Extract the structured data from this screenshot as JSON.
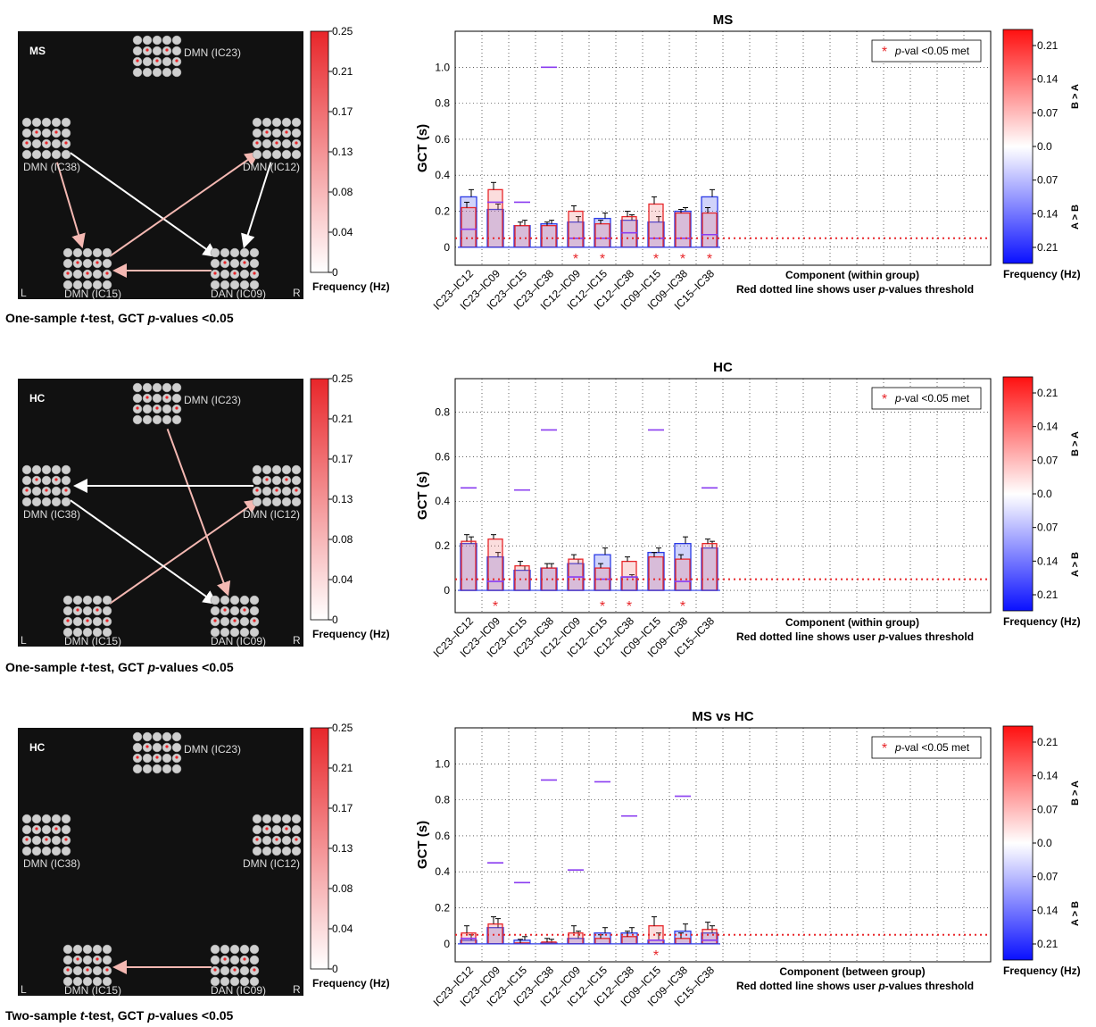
{
  "common": {
    "components": [
      "IC23–IC12",
      "IC23–IC09",
      "IC23–IC15",
      "IC23–IC38",
      "IC12–IC09",
      "IC12–IC15",
      "IC12–IC38",
      "IC09–IC15",
      "IC09–IC38",
      "IC15–IC38"
    ],
    "legend_label": "p-val <0.05 met",
    "threshold_note": "Red dotted line shows user p-values threshold",
    "ylabel": "GCT (s)",
    "colorbar_label": "Frequency (Hz)",
    "colorbar_ticks_left": [
      "0.25",
      "0.21",
      "0.17",
      "0.13",
      "0.08",
      "0.04",
      "0"
    ],
    "colorbar_ticks_right": [
      "0.21",
      "0.14",
      "0.07",
      "0.0",
      "0.07",
      "0.14",
      "0.21"
    ],
    "colorbar_side_top": "B > A",
    "colorbar_side_bottom": "A > B",
    "brain_labels": [
      "DMN (IC23)",
      "DMN (IC38)",
      "DMN (IC12)",
      "DMN (IC15)",
      "DAN (IC09)"
    ],
    "side_left": "L",
    "side_right": "R",
    "colors": {
      "red": "#e8262a",
      "blue": "#2a3ae6",
      "panel_bg": "#111111"
    }
  },
  "rows": [
    {
      "group": "MS",
      "caption_pre": "One-sample ",
      "caption_t": "t",
      "caption_mid": "-test, GCT ",
      "caption_p": "p",
      "caption_post": "-values <0.05",
      "arrows": [
        [
          "DMN (IC38)",
          "DMN (IC15)"
        ],
        [
          "DMN (IC38)",
          "DAN (IC09)"
        ],
        [
          "DMN (IC15)",
          "DMN (IC12)"
        ],
        [
          "DMN (IC12)",
          "DAN (IC09)"
        ],
        [
          "DAN (IC09)",
          "DMN (IC15)"
        ]
      ],
      "xlabel": "Component (within group)"
    },
    {
      "group": "HC",
      "caption_pre": "One-sample ",
      "caption_t": "t",
      "caption_mid": "-test, GCT ",
      "caption_p": "p",
      "caption_post": "-values <0.05",
      "arrows": [
        [
          "DMN (IC23)",
          "DAN (IC09)"
        ],
        [
          "DMN (IC12)",
          "DMN (IC38)"
        ],
        [
          "DMN (IC15)",
          "DMN (IC12)"
        ],
        [
          "DMN (IC38)",
          "DAN (IC09)"
        ]
      ],
      "xlabel": "Component (within group)"
    },
    {
      "group": "HC",
      "caption_pre": "Two-sample ",
      "caption_t": "t",
      "caption_mid": "-test, GCT ",
      "caption_p": "p",
      "caption_post": "-values <0.05",
      "arrows": [
        [
          "DAN (IC09)",
          "DMN (IC15)"
        ]
      ],
      "xlabel": "Component (between group)"
    }
  ],
  "chart_data": [
    {
      "type": "bar",
      "title": "MS",
      "ylim": [
        -0.1,
        1.2
      ],
      "yticks": [
        "0",
        "0.2",
        "0.4",
        "0.6",
        "0.8",
        "1.0"
      ],
      "threshold": 0.05,
      "grid": true,
      "legend_position": "top-right",
      "series": [
        {
          "name": "A",
          "values": [
            0.28,
            0.21,
            0.12,
            0.13,
            0.14,
            0.16,
            0.15,
            0.14,
            0.2,
            0.28
          ],
          "errors": [
            0.04,
            0.03,
            0.03,
            0.02,
            0.03,
            0.03,
            0.03,
            0.03,
            0.02,
            0.04
          ]
        },
        {
          "name": "B",
          "values": [
            0.22,
            0.32,
            0.12,
            0.12,
            0.2,
            0.13,
            0.17,
            0.24,
            0.19,
            0.19
          ],
          "errors": [
            0.03,
            0.04,
            0.02,
            0.02,
            0.03,
            0.02,
            0.03,
            0.04,
            0.02,
            0.03
          ]
        }
      ],
      "median_marks": [
        0.1,
        0.25,
        0.25,
        1.0,
        0.05,
        0.05,
        0.08,
        0.05,
        0.05,
        0.07
      ],
      "significant": [
        false,
        false,
        false,
        false,
        true,
        true,
        false,
        true,
        true,
        true
      ]
    },
    {
      "type": "bar",
      "title": "HC",
      "ylim": [
        -0.1,
        0.95
      ],
      "yticks": [
        "0",
        "0.2",
        "0.4",
        "0.6",
        "0.8"
      ],
      "threshold": 0.05,
      "grid": true,
      "legend_position": "top-right",
      "series": [
        {
          "name": "A",
          "values": [
            0.21,
            0.15,
            0.09,
            0.1,
            0.12,
            0.16,
            0.06,
            0.17,
            0.21,
            0.19
          ],
          "errors": [
            0.03,
            0.02,
            0.02,
            0.02,
            0.02,
            0.03,
            0.01,
            0.02,
            0.03,
            0.03
          ]
        },
        {
          "name": "B",
          "values": [
            0.22,
            0.23,
            0.11,
            0.1,
            0.14,
            0.1,
            0.13,
            0.15,
            0.14,
            0.21
          ],
          "errors": [
            0.03,
            0.02,
            0.02,
            0.02,
            0.02,
            0.02,
            0.02,
            0.02,
            0.02,
            0.02
          ]
        }
      ],
      "median_marks": [
        0.46,
        0.04,
        0.45,
        0.72,
        0.06,
        0.05,
        0.06,
        0.72,
        0.04,
        0.46
      ],
      "significant": [
        false,
        true,
        false,
        false,
        false,
        true,
        true,
        false,
        true,
        false
      ]
    },
    {
      "type": "bar",
      "title": "MS vs HC",
      "ylim": [
        -0.1,
        1.2
      ],
      "yticks": [
        "0",
        "0.2",
        "0.4",
        "0.6",
        "0.8",
        "1.0"
      ],
      "threshold": 0.05,
      "grid": true,
      "legend_position": "top-right",
      "series": [
        {
          "name": "A",
          "values": [
            0.02,
            0.09,
            0.02,
            0.005,
            0.03,
            0.06,
            0.06,
            0.02,
            0.07,
            0.06
          ],
          "errors": [
            0.03,
            0.05,
            0.02,
            0.02,
            0.04,
            0.03,
            0.03,
            0.04,
            0.04,
            0.04
          ]
        },
        {
          "name": "B",
          "values": [
            0.06,
            0.11,
            0.005,
            0.01,
            0.06,
            0.03,
            0.04,
            0.1,
            0.03,
            0.08
          ],
          "errors": [
            0.04,
            0.04,
            0.02,
            0.02,
            0.04,
            0.02,
            0.03,
            0.05,
            0.03,
            0.04
          ]
        }
      ],
      "median_marks": [
        0.03,
        0.45,
        0.34,
        0.91,
        0.41,
        0.9,
        0.71,
        0.02,
        0.82,
        0.02
      ],
      "significant": [
        false,
        false,
        false,
        false,
        false,
        false,
        false,
        true,
        false,
        false
      ]
    }
  ]
}
